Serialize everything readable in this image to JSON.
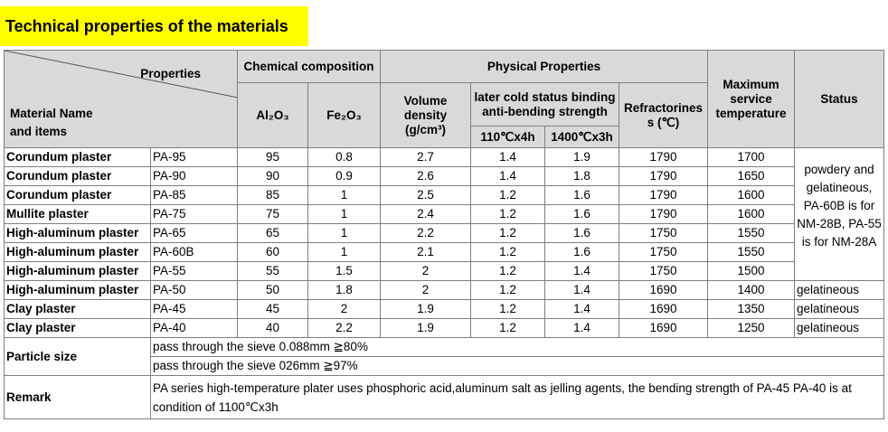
{
  "title": "Technical properties of the materials",
  "header": {
    "properties": "Properties",
    "material_name": "Material Name",
    "and_items": "and items",
    "chemical_composition": "Chemical composition",
    "al2o3": "Al₂O₃",
    "fe2o3": "Fe₂O₃",
    "physical_properties": "Physical Properties",
    "volume_density": "Volume density (g/cm³)",
    "binding_strength": "later cold status binding anti-bending strength",
    "cond_110": "110℃x4h",
    "cond_1400": "1400℃x3h",
    "refractoriness": "Refractorines s (℃)",
    "max_temp": "Maximum service temperature",
    "status": "Status"
  },
  "rows": [
    {
      "name": "Corundum plaster",
      "model": "PA-95",
      "al2o3": "95",
      "fe2o3": "0.8",
      "density": "2.7",
      "s110": "1.4",
      "s1400": "1.9",
      "refr": "1790",
      "maxt": "1700"
    },
    {
      "name": "Corundum plaster",
      "model": "PA-90",
      "al2o3": "90",
      "fe2o3": "0.9",
      "density": "2.6",
      "s110": "1.4",
      "s1400": "1.8",
      "refr": "1790",
      "maxt": "1650"
    },
    {
      "name": "Corundum plaster",
      "model": "PA-85",
      "al2o3": "85",
      "fe2o3": "1",
      "density": "2.5",
      "s110": "1.2",
      "s1400": "1.6",
      "refr": "1790",
      "maxt": "1600"
    },
    {
      "name": "Mullite plaster",
      "model": "PA-75",
      "al2o3": "75",
      "fe2o3": "1",
      "density": "2.4",
      "s110": "1.2",
      "s1400": "1.6",
      "refr": "1790",
      "maxt": "1600"
    },
    {
      "name": "High-aluminum plaster",
      "model": "PA-65",
      "al2o3": "65",
      "fe2o3": "1",
      "density": "2.2",
      "s110": "1.2",
      "s1400": "1.6",
      "refr": "1750",
      "maxt": "1550"
    },
    {
      "name": "High-aluminum plaster",
      "model": "PA-60B",
      "al2o3": "60",
      "fe2o3": "1",
      "density": "2.1",
      "s110": "1.2",
      "s1400": "1.6",
      "refr": "1750",
      "maxt": "1550"
    },
    {
      "name": "High-aluminum plaster",
      "model": "PA-55",
      "al2o3": "55",
      "fe2o3": "1.5",
      "density": "2",
      "s110": "1.2",
      "s1400": "1.4",
      "refr": "1750",
      "maxt": "1500"
    },
    {
      "name": "High-aluminum plaster",
      "model": "PA-50",
      "al2o3": "50",
      "fe2o3": "1.8",
      "density": "2",
      "s110": "1.2",
      "s1400": "1.4",
      "refr": "1690",
      "maxt": "1400",
      "status": "gelatineous"
    },
    {
      "name": "Clay plaster",
      "model": "PA-45",
      "al2o3": "45",
      "fe2o3": "2",
      "density": "1.9",
      "s110": "1.2",
      "s1400": "1.4",
      "refr": "1690",
      "maxt": "1350",
      "status": "gelatineous"
    },
    {
      "name": "Clay plaster",
      "model": "PA-40",
      "al2o3": "40",
      "fe2o3": "2.2",
      "density": "1.9",
      "s110": "1.2",
      "s1400": "1.4",
      "refr": "1690",
      "maxt": "1250",
      "status": "gelatineous"
    }
  ],
  "merged_status": "powdery and gelatineous, PA-60B is for NM-28B, PA-55 is for NM-28A",
  "particle_size": {
    "label": "Particle size",
    "line1": "pass through the sieve 0.088mm ≧80%",
    "line2": "pass through the sieve 026mm ≧97%"
  },
  "remark": {
    "label": "Remark",
    "text": "PA series high-temperature plater uses phosphoric acid,aluminum salt as jelling agents, the bending strength of PA-45 PA-40 is at condition of 1100℃x3h"
  }
}
